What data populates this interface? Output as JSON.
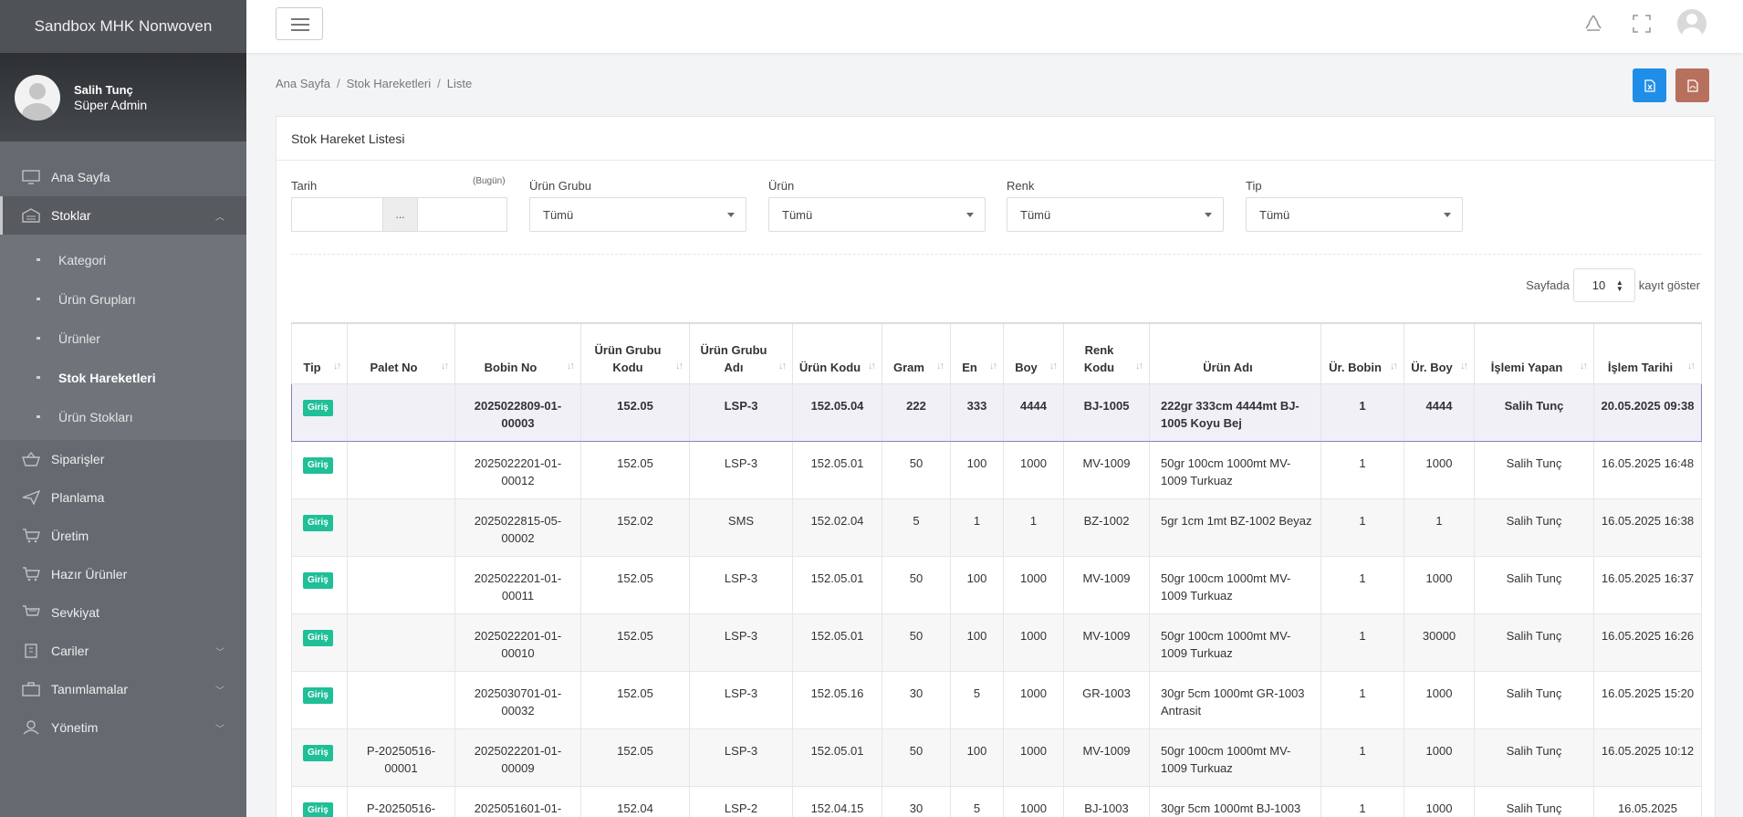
{
  "app": {
    "brand": "Sandbox MHK Nonwoven"
  },
  "user": {
    "name": "Salih Tunç",
    "role": "Süper Admin"
  },
  "sidebar": {
    "items": [
      {
        "label": "Ana Sayfa",
        "icon": "monitor-icon"
      },
      {
        "label": "Stoklar",
        "icon": "warehouse-icon"
      },
      {
        "label": "Siparişler",
        "icon": "basket-icon"
      },
      {
        "label": "Planlama",
        "icon": "send-icon"
      },
      {
        "label": "Üretim",
        "icon": "cart-icon"
      },
      {
        "label": "Hazır Ürünler",
        "icon": "cart-check-icon"
      },
      {
        "label": "Sevkiyat",
        "icon": "shipping-icon"
      },
      {
        "label": "Cariler",
        "icon": "building-icon"
      },
      {
        "label": "Tanımlamalar",
        "icon": "briefcase-icon"
      },
      {
        "label": "Yönetim",
        "icon": "user-icon"
      }
    ],
    "stoklar_sub": [
      {
        "label": "Kategori"
      },
      {
        "label": "Ürün Grupları"
      },
      {
        "label": "Ürünler"
      },
      {
        "label": "Stok Hareketleri"
      },
      {
        "label": "Ürün Stokları"
      }
    ]
  },
  "breadcrumb": {
    "home": "Ana Sayfa",
    "section": "Stok Hareketleri",
    "page": "Liste"
  },
  "card": {
    "title": "Stok Hareket Listesi"
  },
  "filters": {
    "date_label": "Tarih",
    "date_hint": "(Bugün)",
    "date_sep": "...",
    "urun_grubu_label": "Ürün Grubu",
    "urun_grubu_value": "Tümü",
    "urun_label": "Ürün",
    "urun_value": "Tümü",
    "renk_label": "Renk",
    "renk_value": "Tümü",
    "tip_label": "Tip",
    "tip_value": "Tümü"
  },
  "pager": {
    "prefix": "Sayfada",
    "value": "10",
    "suffix": "kayıt göster"
  },
  "table": {
    "headers": [
      "Tip",
      "Palet No",
      "Bobin No",
      "Ürün Grubu Kodu",
      "Ürün Grubu Adı",
      "Ürün Kodu",
      "Gram",
      "En",
      "Boy",
      "Renk Kodu",
      "Ürün Adı",
      "Ür. Bobin",
      "Ür. Boy",
      "İşlemi Yapan",
      "İşlem Tarihi"
    ],
    "rows": [
      [
        "Giriş",
        "",
        "2025022809-01-00003",
        "152.05",
        "LSP-3",
        "152.05.04",
        "222",
        "333",
        "4444",
        "BJ-1005",
        "222gr 333cm 4444mt BJ-1005 Koyu Bej",
        "1",
        "4444",
        "Salih Tunç",
        "20.05.2025 09:38"
      ],
      [
        "Giriş",
        "",
        "2025022201-01-00012",
        "152.05",
        "LSP-3",
        "152.05.01",
        "50",
        "100",
        "1000",
        "MV-1009",
        "50gr 100cm 1000mt MV-1009 Turkuaz",
        "1",
        "1000",
        "Salih Tunç",
        "16.05.2025 16:48"
      ],
      [
        "Giriş",
        "",
        "2025022815-05-00002",
        "152.02",
        "SMS",
        "152.02.04",
        "5",
        "1",
        "1",
        "BZ-1002",
        "5gr 1cm 1mt BZ-1002 Beyaz",
        "1",
        "1",
        "Salih Tunç",
        "16.05.2025 16:38"
      ],
      [
        "Giriş",
        "",
        "2025022201-01-00011",
        "152.05",
        "LSP-3",
        "152.05.01",
        "50",
        "100",
        "1000",
        "MV-1009",
        "50gr 100cm 1000mt MV-1009 Turkuaz",
        "1",
        "1000",
        "Salih Tunç",
        "16.05.2025 16:37"
      ],
      [
        "Giriş",
        "",
        "2025022201-01-00010",
        "152.05",
        "LSP-3",
        "152.05.01",
        "50",
        "100",
        "1000",
        "MV-1009",
        "50gr 100cm 1000mt MV-1009 Turkuaz",
        "1",
        "30000",
        "Salih Tunç",
        "16.05.2025 16:26"
      ],
      [
        "Giriş",
        "",
        "2025030701-01-00032",
        "152.05",
        "LSP-3",
        "152.05.16",
        "30",
        "5",
        "1000",
        "GR-1003",
        "30gr 5cm 1000mt GR-1003 Antrasit",
        "1",
        "1000",
        "Salih Tunç",
        "16.05.2025 15:20"
      ],
      [
        "Giriş",
        "P-20250516-00001",
        "2025022201-01-00009",
        "152.05",
        "LSP-3",
        "152.05.01",
        "50",
        "100",
        "1000",
        "MV-1009",
        "50gr 100cm 1000mt MV-1009 Turkuaz",
        "1",
        "1000",
        "Salih Tunç",
        "16.05.2025 10:12"
      ],
      [
        "Giriş",
        "P-20250516-",
        "2025051601-01-",
        "152.04",
        "LSP-2",
        "152.04.15",
        "30",
        "5",
        "1000",
        "BJ-1003",
        "30gr 5cm 1000mt BJ-1003",
        "1",
        "1000",
        "Salih Tunç",
        "16.05.2025"
      ]
    ]
  },
  "colors": {
    "sidebar": "#656a70",
    "badge": "#1fbf97",
    "excel_btn": "#1f8ee9",
    "pdf_btn": "#b8705e",
    "selected_border": "#8a82c8"
  }
}
